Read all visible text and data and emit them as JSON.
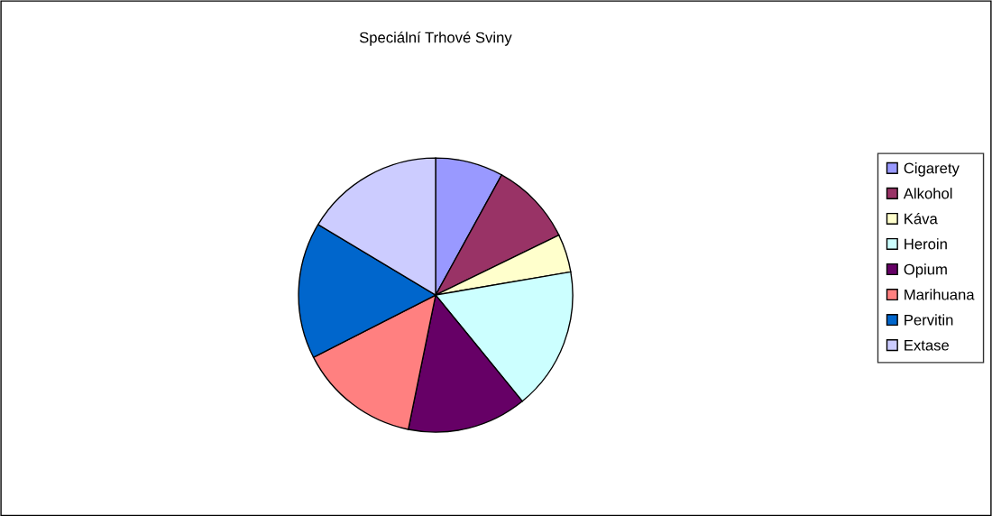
{
  "chart_data": {
    "type": "pie",
    "title": "Speciální Trhové Sviny",
    "categories": [
      "Cigarety",
      "Alkohol",
      "Káva",
      "Heroin",
      "Opium",
      "Marihuana",
      "Pervitin",
      "Extase"
    ],
    "values": [
      8.0,
      9.8,
      4.5,
      16.8,
      14.1,
      14.3,
      16.1,
      16.4
    ],
    "colors": [
      "#9999ff",
      "#993366",
      "#ffffcc",
      "#ccffff",
      "#660066",
      "#ff8080",
      "#0066cc",
      "#ccccff"
    ],
    "legend": "right"
  }
}
